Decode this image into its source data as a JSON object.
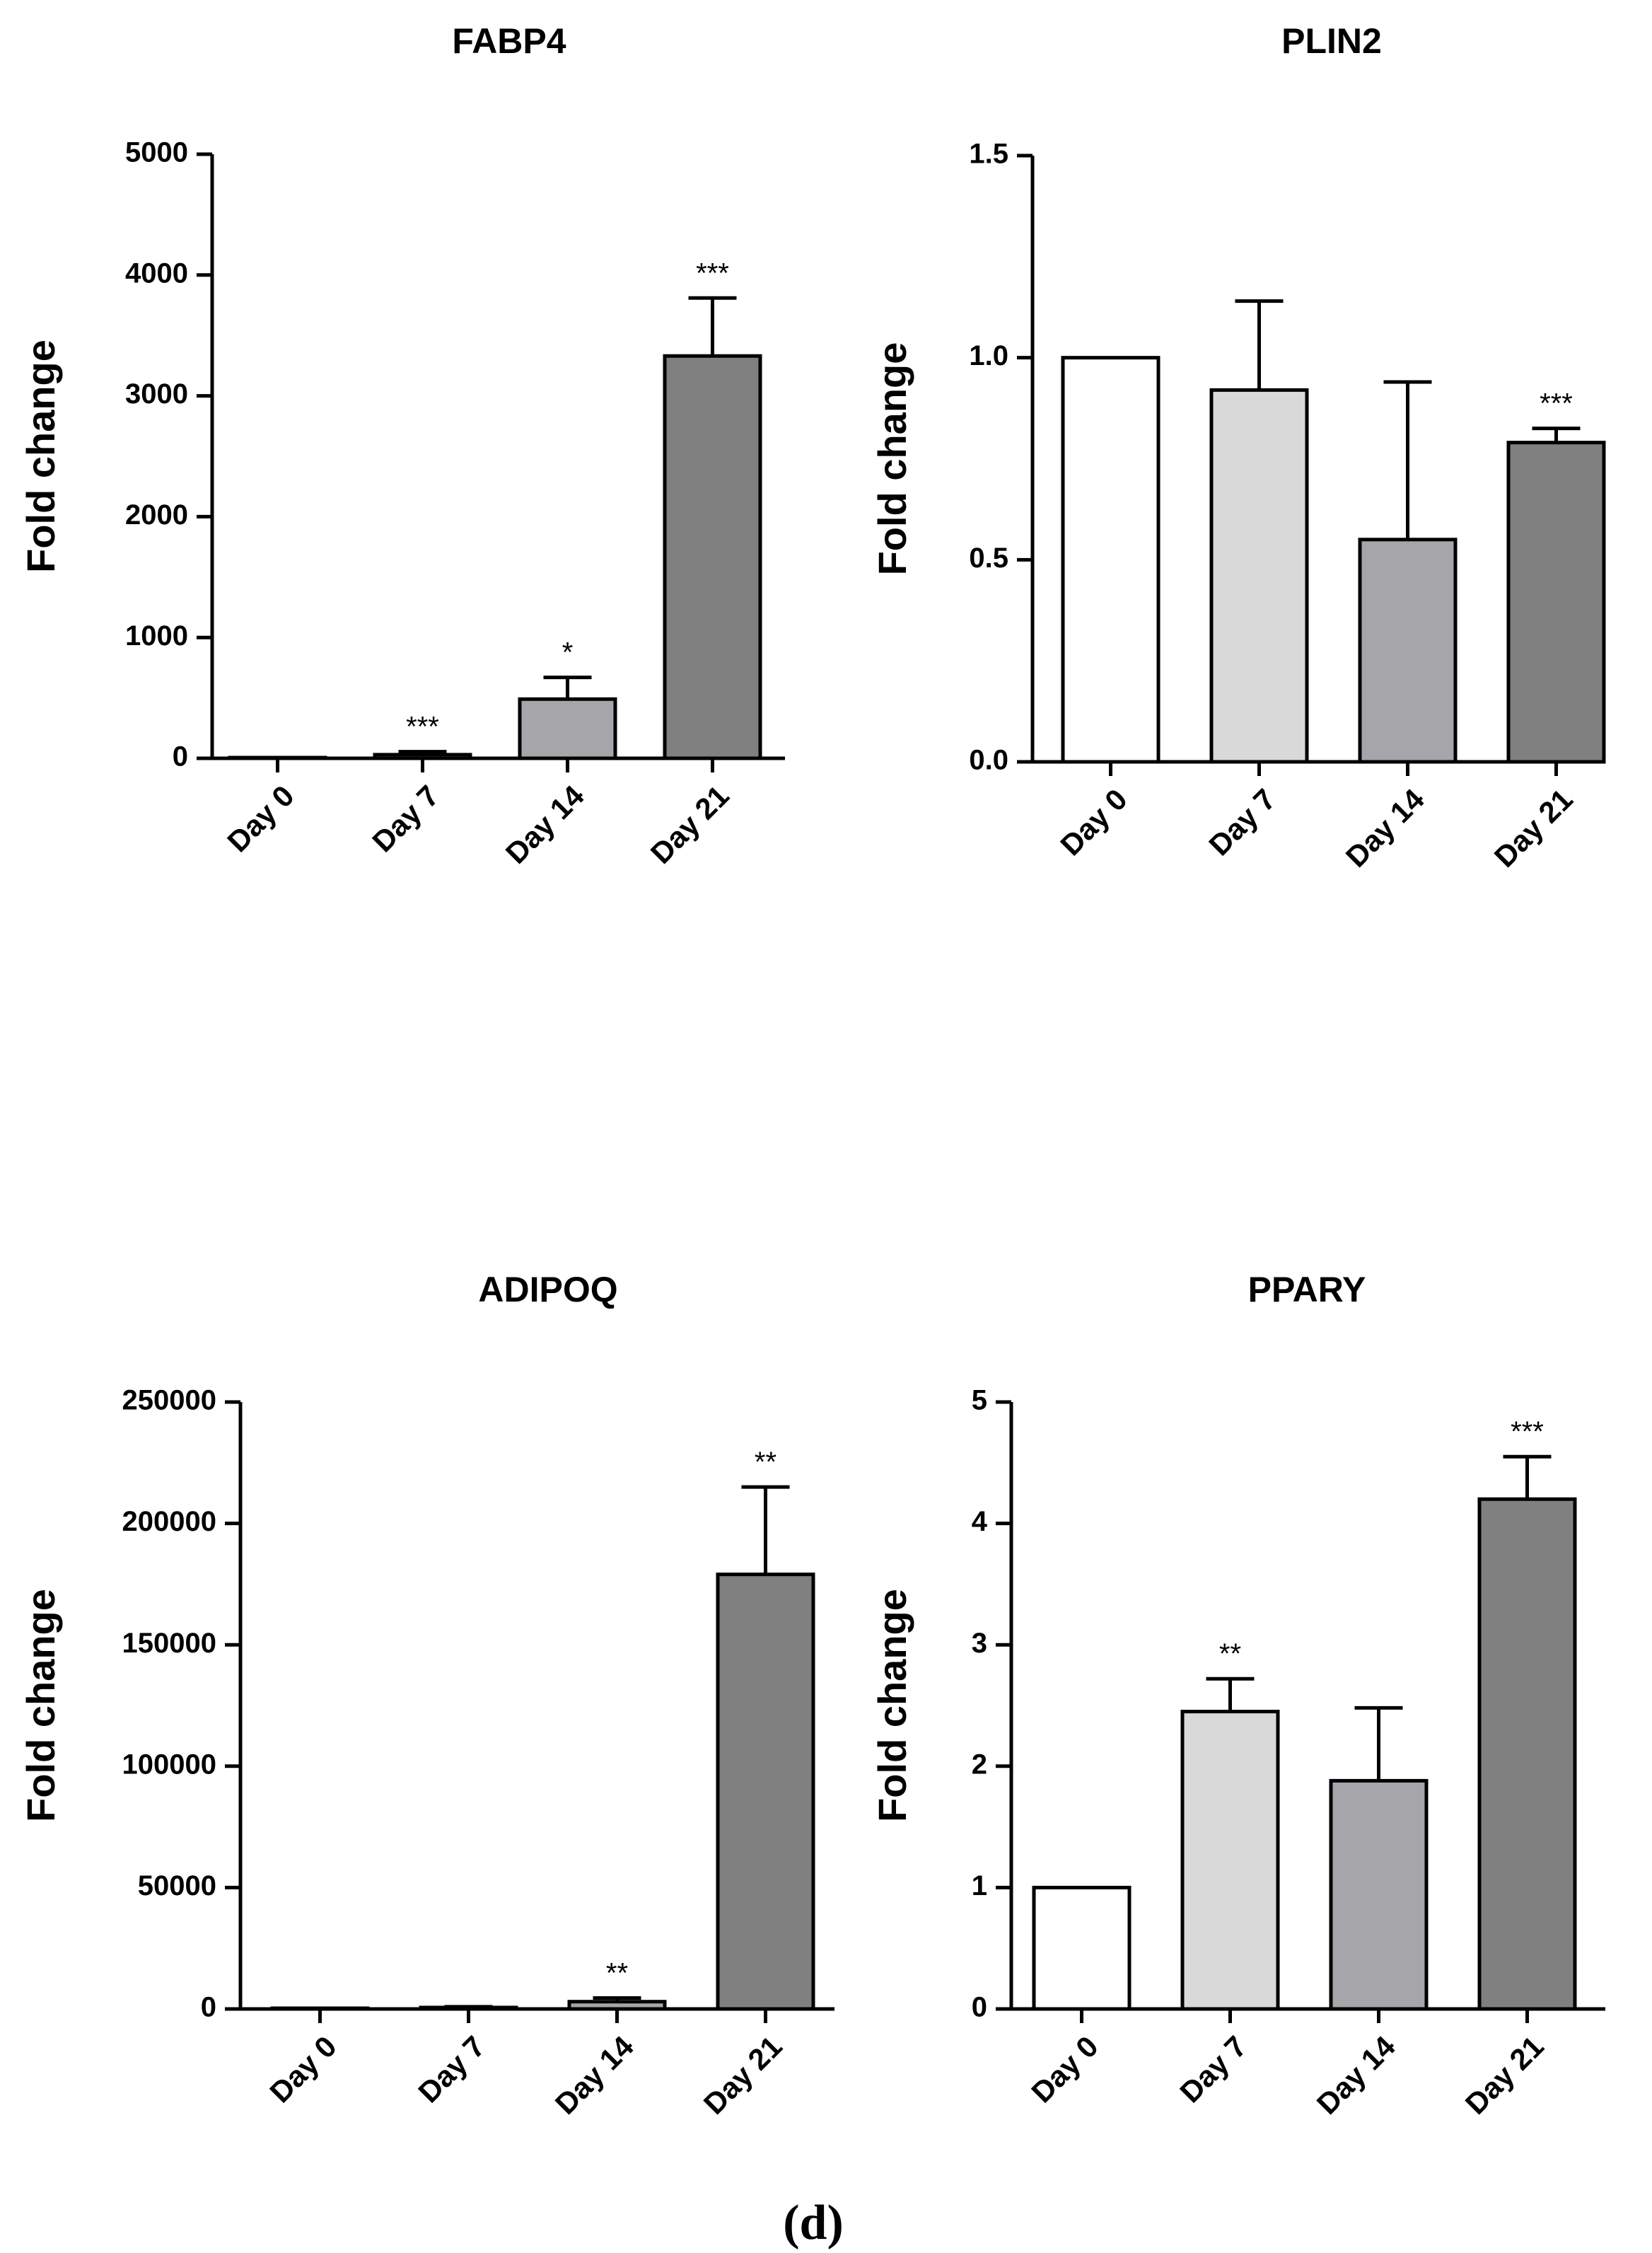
{
  "figure_label": "(d)",
  "chart_data": [
    {
      "type": "bar",
      "title": "FABP4",
      "xlabel": "",
      "ylabel": "Fold change",
      "categories": [
        "Day 0",
        "Day 7",
        "Day 14",
        "Day 21"
      ],
      "values": [
        1,
        30,
        490,
        3330
      ],
      "errors": [
        0,
        25,
        180,
        480
      ],
      "significance": [
        "",
        "***",
        "*",
        "***"
      ],
      "colors": [
        "#ffffff",
        "#d9d9d9",
        "#a6a6aa",
        "#808080"
      ],
      "ylim": [
        0,
        5000
      ],
      "yticks": [
        0,
        1000,
        2000,
        3000,
        4000,
        5000
      ],
      "ytick_labels": [
        "0",
        "1000",
        "2000",
        "3000",
        "4000",
        "5000"
      ]
    },
    {
      "type": "bar",
      "title": "PLIN2",
      "xlabel": "",
      "ylabel": "Fold change",
      "categories": [
        "Day 0",
        "Day 7",
        "Day 14",
        "Day 21"
      ],
      "values": [
        1.0,
        0.92,
        0.55,
        0.79
      ],
      "errors": [
        0,
        0.22,
        0.39,
        0.035
      ],
      "significance": [
        "",
        "",
        "",
        "***"
      ],
      "colors": [
        "#ffffff",
        "#d9d9d9",
        "#a6a6aa",
        "#808080"
      ],
      "ylim": [
        0,
        1.5
      ],
      "yticks": [
        0,
        0.5,
        1.0,
        1.5
      ],
      "ytick_labels": [
        "0.0",
        "0.5",
        "1.0",
        "1.5"
      ]
    },
    {
      "type": "bar",
      "title": "ADIPOQ",
      "xlabel": "",
      "ylabel": "Fold change",
      "categories": [
        "Day 0",
        "Day 7",
        "Day 14",
        "Day 21"
      ],
      "values": [
        1,
        600,
        3000,
        179000
      ],
      "errors": [
        0,
        300,
        1500,
        36000
      ],
      "significance": [
        "",
        "",
        "**",
        "**"
      ],
      "colors": [
        "#ffffff",
        "#d9d9d9",
        "#a6a6aa",
        "#808080"
      ],
      "ylim": [
        0,
        250000
      ],
      "yticks": [
        0,
        50000,
        100000,
        150000,
        200000,
        250000
      ],
      "ytick_labels": [
        "0",
        "50000",
        "100000",
        "150000",
        "200000",
        "250000"
      ]
    },
    {
      "type": "bar",
      "title": "PPARY",
      "xlabel": "",
      "ylabel": "Fold change",
      "categories": [
        "Day 0",
        "Day 7",
        "Day 14",
        "Day 21"
      ],
      "values": [
        1.0,
        2.45,
        1.88,
        4.2
      ],
      "errors": [
        0,
        0.27,
        0.6,
        0.35
      ],
      "significance": [
        "",
        "**",
        "",
        "***"
      ],
      "colors": [
        "#ffffff",
        "#d9d9d9",
        "#a6a6aa",
        "#808080"
      ],
      "ylim": [
        0,
        5
      ],
      "yticks": [
        0,
        1,
        2,
        3,
        4,
        5
      ],
      "ytick_labels": [
        "0",
        "1",
        "2",
        "3",
        "4",
        "5"
      ]
    }
  ]
}
